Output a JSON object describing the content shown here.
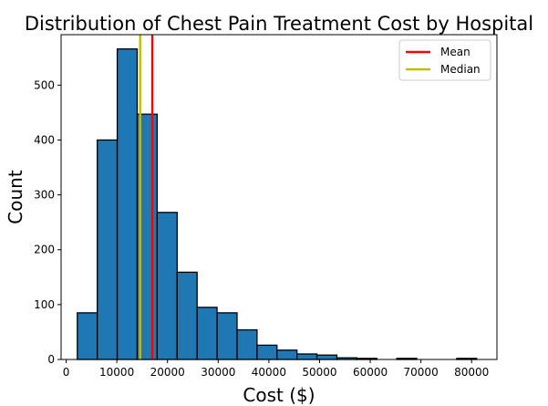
{
  "chart_data": {
    "type": "bar",
    "title": "Distribution of Chest Pain Treatment Cost by Hospital",
    "xlabel": "Cost ($)",
    "ylabel": "Count",
    "xlim": [
      -1000,
      85000
    ],
    "ylim": [
      0,
      592
    ],
    "bin_start": 2200,
    "bin_width": 3940,
    "counts": [
      85,
      400,
      566,
      447,
      268,
      159,
      95,
      85,
      54,
      26,
      17,
      10,
      8,
      3,
      2,
      0,
      2,
      0,
      0,
      2
    ],
    "x_ticks": [
      0,
      10000,
      20000,
      30000,
      40000,
      50000,
      60000,
      70000,
      80000
    ],
    "y_ticks": [
      0,
      100,
      200,
      300,
      400,
      500
    ],
    "bar_color": "#1f77b4",
    "bar_edge_color": "#000000",
    "lines": [
      {
        "name": "Mean",
        "x": 17000,
        "color": "#ff0000"
      },
      {
        "name": "Median",
        "x": 14600,
        "color": "#bfbf00"
      }
    ],
    "legend_position": "top-right",
    "grid": false
  }
}
